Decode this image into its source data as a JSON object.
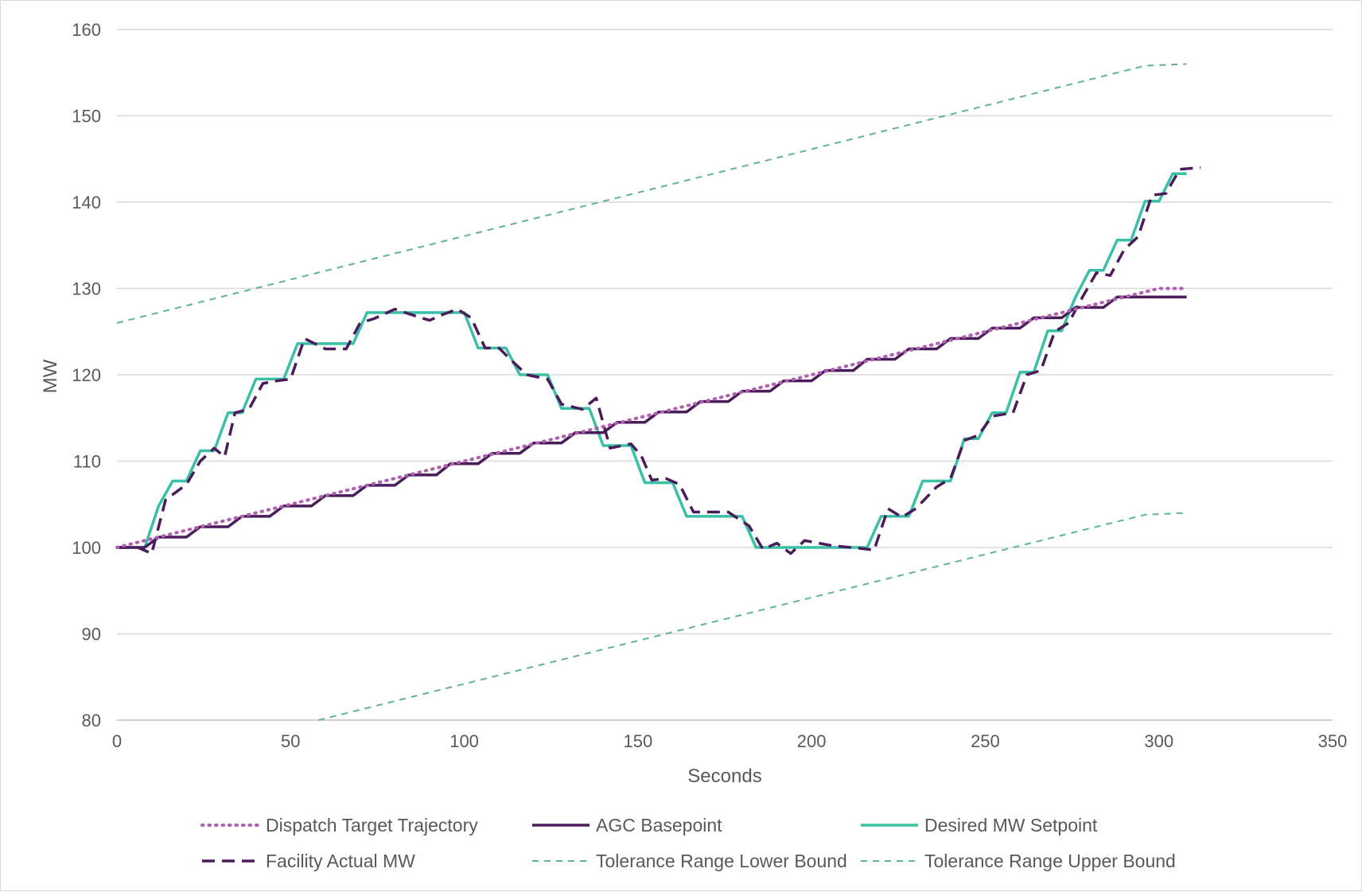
{
  "chart_data": {
    "type": "line",
    "xlabel": "Seconds",
    "ylabel": "MW",
    "xlim": [
      0,
      350
    ],
    "ylim": [
      80,
      160
    ],
    "xticks": [
      0,
      50,
      100,
      150,
      200,
      250,
      300,
      350
    ],
    "yticks": [
      80,
      90,
      100,
      110,
      120,
      130,
      140,
      150,
      160
    ],
    "grid": "horizontal",
    "legend_position": "bottom",
    "series": [
      {
        "name": "Dispatch Target Trajectory",
        "style": "dotted",
        "color": "#b060b0",
        "points": [
          [
            0,
            100
          ],
          [
            300,
            130
          ],
          [
            308,
            130
          ]
        ]
      },
      {
        "name": "AGC Basepoint",
        "style": "solid",
        "color": "#4a1c5a",
        "step": true,
        "points": [
          [
            0,
            100
          ],
          [
            8,
            100
          ],
          [
            12,
            101.2
          ],
          [
            20,
            101.2
          ],
          [
            24,
            102.4
          ],
          [
            32,
            102.4
          ],
          [
            36,
            103.6
          ],
          [
            44,
            103.6
          ],
          [
            48,
            104.8
          ],
          [
            56,
            104.8
          ],
          [
            60,
            106
          ],
          [
            68,
            106
          ],
          [
            72,
            107.2
          ],
          [
            80,
            107.2
          ],
          [
            84,
            108.4
          ],
          [
            92,
            108.4
          ],
          [
            96,
            109.7
          ],
          [
            104,
            109.7
          ],
          [
            108,
            110.9
          ],
          [
            116,
            110.9
          ],
          [
            120,
            112.1
          ],
          [
            128,
            112.1
          ],
          [
            132,
            113.3
          ],
          [
            140,
            113.3
          ],
          [
            144,
            114.5
          ],
          [
            152,
            114.5
          ],
          [
            156,
            115.7
          ],
          [
            164,
            115.7
          ],
          [
            168,
            116.9
          ],
          [
            176,
            116.9
          ],
          [
            180,
            118.1
          ],
          [
            188,
            118.1
          ],
          [
            192,
            119.3
          ],
          [
            200,
            119.3
          ],
          [
            204,
            120.5
          ],
          [
            212,
            120.5
          ],
          [
            216,
            121.8
          ],
          [
            224,
            121.8
          ],
          [
            228,
            123
          ],
          [
            236,
            123
          ],
          [
            240,
            124.2
          ],
          [
            248,
            124.2
          ],
          [
            252,
            125.4
          ],
          [
            260,
            125.4
          ],
          [
            264,
            126.6
          ],
          [
            272,
            126.6
          ],
          [
            276,
            127.8
          ],
          [
            284,
            127.8
          ],
          [
            288,
            129
          ],
          [
            308,
            129
          ]
        ]
      },
      {
        "name": "Desired MW Setpoint",
        "style": "solid",
        "color": "#3bbfa6",
        "points": [
          [
            0,
            100
          ],
          [
            8,
            100
          ],
          [
            12,
            104.8
          ],
          [
            16,
            107.7
          ],
          [
            20,
            107.7
          ],
          [
            24,
            111.2
          ],
          [
            28,
            111.2
          ],
          [
            32,
            115.6
          ],
          [
            36,
            115.6
          ],
          [
            40,
            119.5
          ],
          [
            48,
            119.5
          ],
          [
            52,
            123.6
          ],
          [
            68,
            123.6
          ],
          [
            72,
            127.2
          ],
          [
            100,
            127.2
          ],
          [
            104,
            123.1
          ],
          [
            112,
            123.1
          ],
          [
            116,
            120
          ],
          [
            124,
            120
          ],
          [
            128,
            116.1
          ],
          [
            136,
            116.1
          ],
          [
            140,
            111.8
          ],
          [
            148,
            111.8
          ],
          [
            152,
            107.5
          ],
          [
            160,
            107.5
          ],
          [
            164,
            103.6
          ],
          [
            180,
            103.6
          ],
          [
            184,
            100
          ],
          [
            216,
            100
          ],
          [
            220,
            103.6
          ],
          [
            228,
            103.6
          ],
          [
            232,
            107.7
          ],
          [
            240,
            107.7
          ],
          [
            244,
            112.6
          ],
          [
            248,
            112.6
          ],
          [
            252,
            115.6
          ],
          [
            256,
            115.6
          ],
          [
            260,
            120.3
          ],
          [
            264,
            120.3
          ],
          [
            268,
            125.1
          ],
          [
            272,
            125.1
          ],
          [
            276,
            129
          ],
          [
            280,
            132.1
          ],
          [
            284,
            132.1
          ],
          [
            288,
            135.6
          ],
          [
            292,
            135.6
          ],
          [
            296,
            140.1
          ],
          [
            300,
            140.1
          ],
          [
            304,
            143.3
          ],
          [
            308,
            143.3
          ]
        ]
      },
      {
        "name": "Facility Actual MW",
        "style": "dashed",
        "color": "#4a1c5a",
        "points": [
          [
            0,
            100
          ],
          [
            6,
            100
          ],
          [
            10,
            99.3
          ],
          [
            14,
            105.5
          ],
          [
            20,
            107.3
          ],
          [
            24,
            110
          ],
          [
            28,
            111.5
          ],
          [
            31,
            110.5
          ],
          [
            34,
            115.6
          ],
          [
            38,
            116
          ],
          [
            42,
            119
          ],
          [
            46,
            119.3
          ],
          [
            50,
            119.5
          ],
          [
            54,
            124.2
          ],
          [
            60,
            123
          ],
          [
            66,
            123
          ],
          [
            70,
            126
          ],
          [
            74,
            126.5
          ],
          [
            80,
            127.6
          ],
          [
            86,
            126.8
          ],
          [
            90,
            126.3
          ],
          [
            94,
            127
          ],
          [
            98,
            127.6
          ],
          [
            102,
            126.6
          ],
          [
            106,
            123.1
          ],
          [
            110,
            123.1
          ],
          [
            114,
            121.5
          ],
          [
            118,
            120
          ],
          [
            124,
            119.5
          ],
          [
            128,
            116.6
          ],
          [
            134,
            116
          ],
          [
            138,
            117.3
          ],
          [
            142,
            111.5
          ],
          [
            148,
            112
          ],
          [
            151,
            110.6
          ],
          [
            154,
            107.8
          ],
          [
            158,
            108
          ],
          [
            162,
            107.3
          ],
          [
            166,
            104.1
          ],
          [
            176,
            104.1
          ],
          [
            182,
            102.5
          ],
          [
            186,
            99.8
          ],
          [
            190,
            100.5
          ],
          [
            194,
            99.3
          ],
          [
            198,
            100.8
          ],
          [
            206,
            100.2
          ],
          [
            214,
            99.9
          ],
          [
            218,
            99.7
          ],
          [
            222,
            104.5
          ],
          [
            226,
            103.5
          ],
          [
            230,
            104.5
          ],
          [
            236,
            107
          ],
          [
            240,
            108
          ],
          [
            244,
            112.4
          ],
          [
            248,
            113
          ],
          [
            252,
            115.2
          ],
          [
            258,
            115.6
          ],
          [
            262,
            120
          ],
          [
            266,
            120.5
          ],
          [
            270,
            125
          ],
          [
            274,
            126
          ],
          [
            278,
            129
          ],
          [
            282,
            131.8
          ],
          [
            286,
            131.5
          ],
          [
            290,
            134.5
          ],
          [
            294,
            136
          ],
          [
            298,
            140.8
          ],
          [
            302,
            141
          ],
          [
            306,
            143.8
          ],
          [
            312,
            144
          ]
        ]
      },
      {
        "name": "Tolerance Range Lower Bound",
        "style": "dashed-thin",
        "color": "#5fb39b",
        "points": [
          [
            58,
            80
          ],
          [
            296,
            103.8
          ],
          [
            308,
            104
          ]
        ]
      },
      {
        "name": "Tolerance Range Upper Bound",
        "style": "dashed-thin",
        "color": "#5fb39b",
        "points": [
          [
            0,
            126
          ],
          [
            296,
            155.8
          ],
          [
            308,
            156
          ]
        ]
      }
    ]
  }
}
